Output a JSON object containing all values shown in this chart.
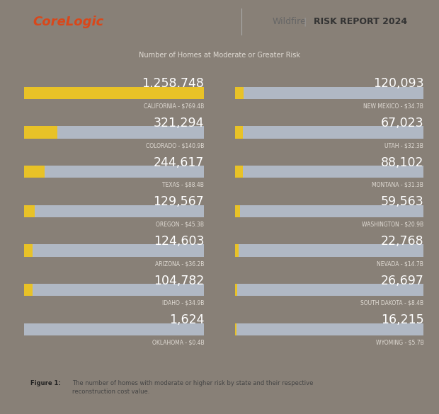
{
  "bg_color": "#888077",
  "header_bg": "#ffffff",
  "caption_bg": "#f0ede8",
  "title_sub": "Number of Homes at Moderate or Greater Risk",
  "brand": "CoreLogic",
  "brand_color": "#d9471a",
  "text_color": "#ffffff",
  "label_color": "#e0dbd4",
  "bar_gray": "#b0b8c4",
  "bar_yellow": "#e8c227",
  "max_rcv": 769.4,
  "left_data": [
    {
      "state": "CALIFORNIA - $769.4B",
      "value": "1,258,748",
      "homes": 1258748,
      "rcv": 769.4
    },
    {
      "state": "COLORADO - $140.9B",
      "value": "321,294",
      "homes": 321294,
      "rcv": 140.9
    },
    {
      "state": "TEXAS - $88.4B",
      "value": "244,617",
      "homes": 244617,
      "rcv": 88.4
    },
    {
      "state": "OREGON - $45.3B",
      "value": "129,567",
      "homes": 129567,
      "rcv": 45.3
    },
    {
      "state": "ARIZONA - $36.2B",
      "value": "124,603",
      "homes": 124603,
      "rcv": 36.2
    },
    {
      "state": "IDAHO - $34.9B",
      "value": "104,782",
      "homes": 104782,
      "rcv": 34.9
    },
    {
      "state": "OKLAHOMA - $0.4B",
      "value": "1,624",
      "homes": 1624,
      "rcv": 0.4
    }
  ],
  "right_data": [
    {
      "state": "NEW MEXICO - $34.7B",
      "value": "120,093",
      "homes": 120093,
      "rcv": 34.7
    },
    {
      "state": "UTAH - $32.3B",
      "value": "67,023",
      "homes": 67023,
      "rcv": 32.3
    },
    {
      "state": "MONTANA - $31.3B",
      "value": "88,102",
      "homes": 88102,
      "rcv": 31.3
    },
    {
      "state": "WASHINGTON - $20.9B",
      "value": "59,563",
      "homes": 59563,
      "rcv": 20.9
    },
    {
      "state": "NEVADA - $14.7B",
      "value": "22,768",
      "homes": 22768,
      "rcv": 14.7
    },
    {
      "state": "SOUTH DAKOTA - $8.4B",
      "value": "26,697",
      "homes": 26697,
      "rcv": 8.4
    },
    {
      "state": "WYOMING - $5.7B",
      "value": "16,215",
      "homes": 16215,
      "rcv": 5.7
    }
  ]
}
